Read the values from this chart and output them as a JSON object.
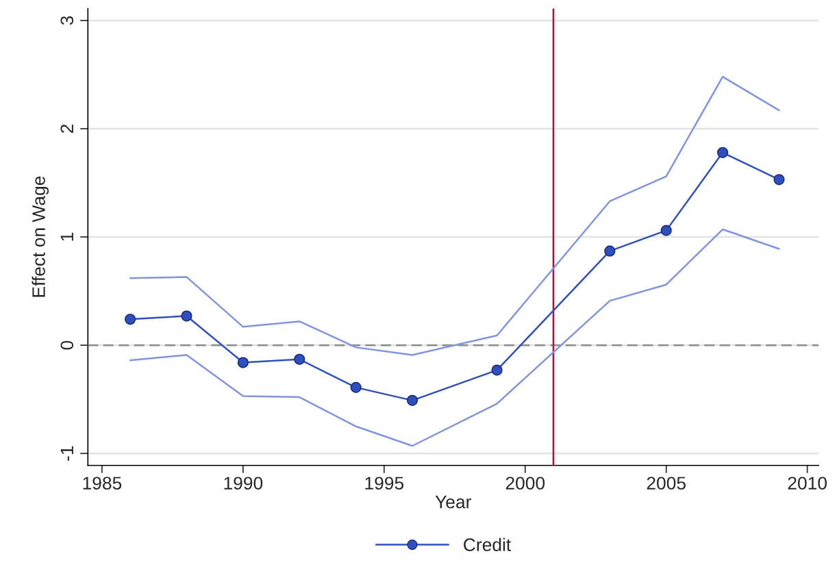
{
  "chart_data": {
    "type": "line",
    "xlabel": "Year",
    "ylabel": "Effect on Wage",
    "x": [
      1986,
      1988,
      1990,
      1992,
      1994,
      1996,
      1999,
      2003,
      2005,
      2007,
      2009
    ],
    "series": [
      {
        "color": "#8094df",
        "marker": "none",
        "values": [
          0.62,
          0.63,
          0.17,
          0.22,
          -0.02,
          -0.09,
          0.09,
          1.33,
          1.56,
          2.48,
          2.17
        ]
      },
      {
        "color": "#8094df",
        "marker": "none",
        "values": [
          -0.14,
          -0.09,
          -0.47,
          -0.48,
          -0.75,
          -0.93,
          -0.54,
          0.41,
          0.56,
          1.07,
          0.89
        ]
      },
      {
        "name": "Credit",
        "color": "#2f4fbf",
        "marker": "circle",
        "values": [
          0.24,
          0.27,
          -0.16,
          -0.13,
          -0.39,
          -0.51,
          -0.23,
          0.87,
          1.06,
          1.78,
          1.53
        ]
      }
    ],
    "line_style": "solid",
    "xlim": [
      1984.5,
      2010.4
    ],
    "ylim": [
      -1.11,
      3.11
    ],
    "xticks": [
      1985,
      1990,
      1995,
      2000,
      2005,
      2010
    ],
    "yticks": [
      {
        "value": -1,
        "label": "-1"
      },
      0,
      1,
      2,
      3
    ],
    "grid": "y",
    "legend": "bottom",
    "ref_lines": [
      {
        "axis": "y",
        "value": 0,
        "color": "#8c8c8c",
        "line_style": "dashed"
      },
      {
        "axis": "x",
        "value": 2001,
        "color": "#b0103a",
        "line_style": "solid"
      }
    ]
  }
}
